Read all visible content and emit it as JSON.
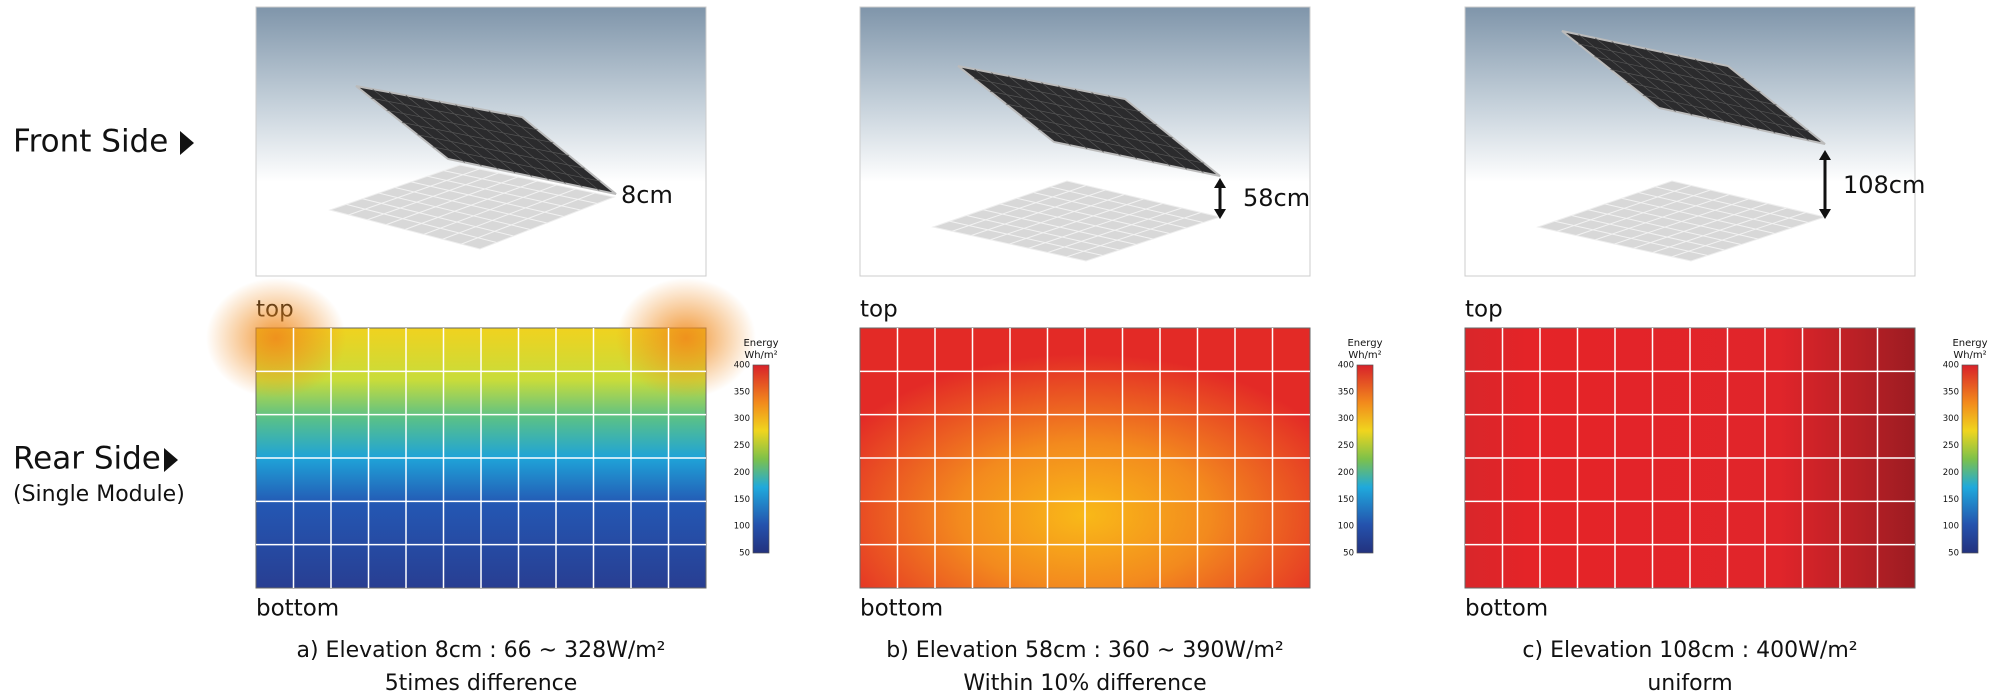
{
  "row_labels": {
    "front": "Front Side",
    "rear": "Rear Side",
    "rear_note": "(Single Module)"
  },
  "panels": [
    {
      "elevation_label": "8cm",
      "top_label": "top",
      "bottom_label": "bottom",
      "caption": [
        "a) Elevation 8cm : 66 ~ 328W/m²",
        "5times difference"
      ]
    },
    {
      "elevation_label": "58cm",
      "top_label": "top",
      "bottom_label": "bottom",
      "caption": [
        "b) Elevation 58cm : 360 ~ 390W/m²",
        "Within 10% difference"
      ]
    },
    {
      "elevation_label": "108cm",
      "top_label": "top",
      "bottom_label": "bottom",
      "caption": [
        "c) Elevation 108cm : 400W/m²",
        "uniform"
      ]
    }
  ],
  "colorbar": {
    "title": "Energy",
    "unit": "Wh/m²",
    "ticks": [
      400,
      350,
      300,
      250,
      200,
      150,
      100,
      50
    ]
  }
}
